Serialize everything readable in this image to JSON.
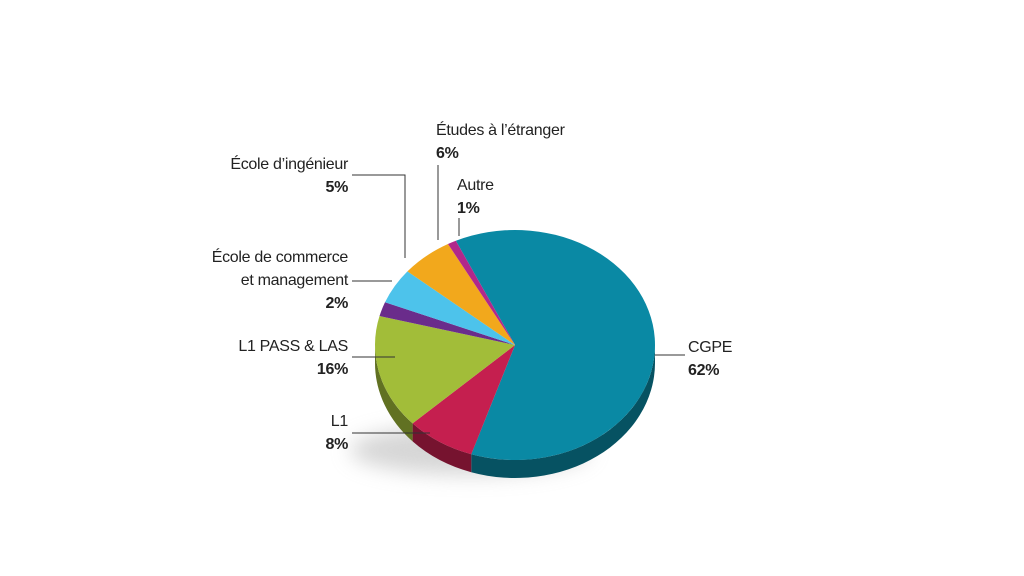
{
  "chart_data": {
    "type": "pie",
    "categories": [
      "CGPE",
      "L1",
      "L1 PASS & LAS",
      "École de commerce et management",
      "École d’ingénieur",
      "Études à l’étranger",
      "Autre"
    ],
    "values": [
      62,
      8,
      16,
      2,
      5,
      6,
      1
    ],
    "value_labels": [
      "62%",
      "8%",
      "16%",
      "2%",
      "5%",
      "6%",
      "1%"
    ],
    "colors": [
      "#0a89a4",
      "#c51f4f",
      "#a2bd39",
      "#6a2c8b",
      "#4dc3eb",
      "#f2a81c",
      "#b1288b"
    ]
  }
}
